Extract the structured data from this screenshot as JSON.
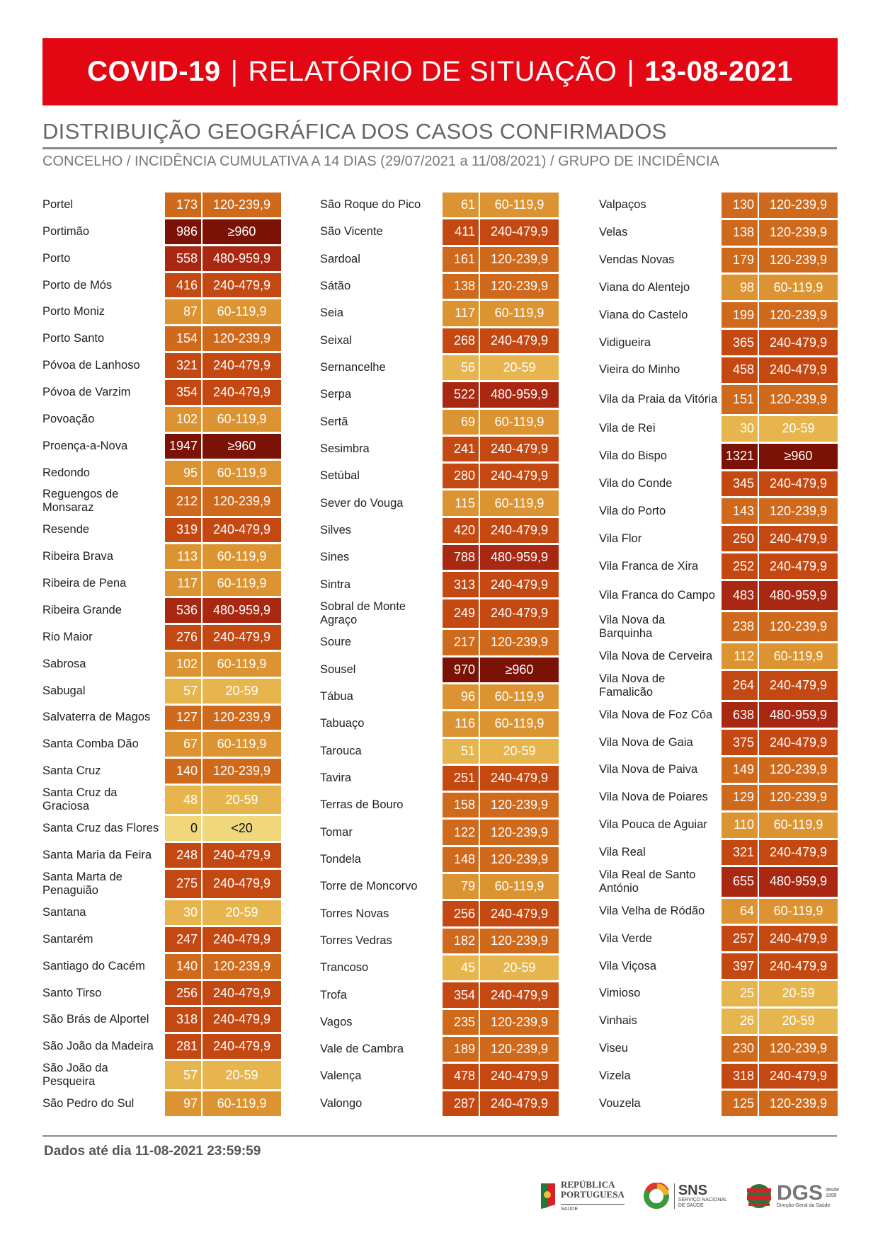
{
  "header": {
    "part1": "COVID-19",
    "separator": "|",
    "part2": "RELATÓRIO DE SITUAÇÃO",
    "date": "13-08-2021"
  },
  "title": "DISTRIBUIÇÃO GEOGRÁFICA DOS CASOS CONFIRMADOS",
  "subtitle": "CONCELHO / INCIDÊNCIA CUMULATIVA A 14 DIAS (29/07/2021 a 11/08/2021) / GRUPO DE INCIDÊNCIA",
  "colors": {
    "<20": "#f0d77c",
    "20-59": "#e7b54e",
    "60-119,9": "#dc9331",
    "120-239,9": "#cf6a1c",
    "240-479,9": "#c44811",
    "480-959,9": "#a82812",
    "≥960": "#7b1206",
    "banner": "#e30613"
  },
  "columns": [
    [
      [
        "Portel",
        "173",
        "120-239,9"
      ],
      [
        "Portimão",
        "986",
        "≥960"
      ],
      [
        "Porto",
        "558",
        "480-959,9"
      ],
      [
        "Porto de Mós",
        "416",
        "240-479,9"
      ],
      [
        "Porto Moniz",
        "87",
        "60-119,9"
      ],
      [
        "Porto Santo",
        "154",
        "120-239,9"
      ],
      [
        "Póvoa de Lanhoso",
        "321",
        "240-479,9"
      ],
      [
        "Póvoa de Varzim",
        "354",
        "240-479,9"
      ],
      [
        "Povoação",
        "102",
        "60-119,9"
      ],
      [
        "Proença-a-Nova",
        "1947",
        "≥960"
      ],
      [
        "Redondo",
        "95",
        "60-119,9"
      ],
      [
        "Reguengos de Monsaraz",
        "212",
        "120-239,9"
      ],
      [
        "Resende",
        "319",
        "240-479,9"
      ],
      [
        "Ribeira Brava",
        "113",
        "60-119,9"
      ],
      [
        "Ribeira de Pena",
        "117",
        "60-119,9"
      ],
      [
        "Ribeira Grande",
        "536",
        "480-959,9"
      ],
      [
        "Rio Maior",
        "276",
        "240-479,9"
      ],
      [
        "Sabrosa",
        "102",
        "60-119,9"
      ],
      [
        "Sabugal",
        "57",
        "20-59"
      ],
      [
        "Salvaterra de Magos",
        "127",
        "120-239,9"
      ],
      [
        "Santa Comba Dão",
        "67",
        "60-119,9"
      ],
      [
        "Santa Cruz",
        "140",
        "120-239,9"
      ],
      [
        "Santa Cruz da Graciosa",
        "48",
        "20-59"
      ],
      [
        "Santa Cruz das Flores",
        "0",
        "<20"
      ],
      [
        "Santa Maria da Feira",
        "248",
        "240-479,9"
      ],
      [
        "Santa Marta de Penaguião",
        "275",
        "240-479,9"
      ],
      [
        "Santana",
        "30",
        "20-59"
      ],
      [
        "Santarém",
        "247",
        "240-479,9"
      ],
      [
        "Santiago do Cacém",
        "140",
        "120-239,9"
      ],
      [
        "Santo Tirso",
        "256",
        "240-479,9"
      ],
      [
        "São Brás de Alportel",
        "318",
        "240-479,9"
      ],
      [
        "São João da Madeira",
        "281",
        "240-479,9"
      ],
      [
        "São João da Pesqueira",
        "57",
        "20-59"
      ],
      [
        "São Pedro do Sul",
        "97",
        "60-119,9"
      ]
    ],
    [
      [
        "São Roque do Pico",
        "61",
        "60-119,9"
      ],
      [
        "São Vicente",
        "411",
        "240-479,9"
      ],
      [
        "Sardoal",
        "161",
        "120-239,9"
      ],
      [
        "Sátão",
        "138",
        "120-239,9"
      ],
      [
        "Seia",
        "117",
        "60-119,9"
      ],
      [
        "Seixal",
        "268",
        "240-479,9"
      ],
      [
        "Sernancelhe",
        "56",
        "20-59"
      ],
      [
        "Serpa",
        "522",
        "480-959,9"
      ],
      [
        "Sertã",
        "69",
        "60-119,9"
      ],
      [
        "Sesimbra",
        "241",
        "240-479,9"
      ],
      [
        "Setúbal",
        "280",
        "240-479,9"
      ],
      [
        "Sever do Vouga",
        "115",
        "60-119,9"
      ],
      [
        "Silves",
        "420",
        "240-479,9"
      ],
      [
        "Sines",
        "788",
        "480-959,9"
      ],
      [
        "Sintra",
        "313",
        "240-479,9"
      ],
      [
        "Sobral de Monte Agraço",
        "249",
        "240-479,9"
      ],
      [
        "Soure",
        "217",
        "120-239,9"
      ],
      [
        "Sousel",
        "970",
        "≥960"
      ],
      [
        "Tábua",
        "96",
        "60-119,9"
      ],
      [
        "Tabuaço",
        "116",
        "60-119,9"
      ],
      [
        "Tarouca",
        "51",
        "20-59"
      ],
      [
        "Tavira",
        "251",
        "240-479,9"
      ],
      [
        "Terras de Bouro",
        "158",
        "120-239,9"
      ],
      [
        "Tomar",
        "122",
        "120-239,9"
      ],
      [
        "Tondela",
        "148",
        "120-239,9"
      ],
      [
        "Torre de Moncorvo",
        "79",
        "60-119,9"
      ],
      [
        "Torres Novas",
        "256",
        "240-479,9"
      ],
      [
        "Torres Vedras",
        "182",
        "120-239,9"
      ],
      [
        "Trancoso",
        "45",
        "20-59"
      ],
      [
        "Trofa",
        "354",
        "240-479,9"
      ],
      [
        "Vagos",
        "235",
        "120-239,9"
      ],
      [
        "Vale de Cambra",
        "189",
        "120-239,9"
      ],
      [
        "Valença",
        "478",
        "240-479,9"
      ],
      [
        "Valongo",
        "287",
        "240-479,9"
      ]
    ],
    [
      [
        "Valpaços",
        "130",
        "120-239,9"
      ],
      [
        "Velas",
        "138",
        "120-239,9"
      ],
      [
        "Vendas Novas",
        "179",
        "120-239,9"
      ],
      [
        "Viana do Alentejo",
        "98",
        "60-119,9"
      ],
      [
        "Viana do Castelo",
        "199",
        "120-239,9"
      ],
      [
        "Vidigueira",
        "365",
        "240-479,9"
      ],
      [
        "Vieira do Minho",
        "458",
        "240-479,9"
      ],
      [
        "Vila da Praia da Vitória",
        "151",
        "120-239,9"
      ],
      [
        "Vila de Rei",
        "30",
        "20-59"
      ],
      [
        "Vila do Bispo",
        "1321",
        "≥960"
      ],
      [
        "Vila do Conde",
        "345",
        "240-479,9"
      ],
      [
        "Vila do Porto",
        "143",
        "120-239,9"
      ],
      [
        "Vila Flor",
        "250",
        "240-479,9"
      ],
      [
        "Vila Franca de Xira",
        "252",
        "240-479,9"
      ],
      [
        "Vila Franca do Campo",
        "483",
        "480-959,9"
      ],
      [
        "Vila Nova da Barquinha",
        "238",
        "120-239,9"
      ],
      [
        "Vila Nova de Cerveira",
        "112",
        "60-119,9"
      ],
      [
        "Vila Nova de Famalicão",
        "264",
        "240-479,9"
      ],
      [
        "Vila Nova de Foz Côa",
        "638",
        "480-959,9"
      ],
      [
        "Vila Nova de Gaia",
        "375",
        "240-479,9"
      ],
      [
        "Vila Nova de Paiva",
        "149",
        "120-239,9"
      ],
      [
        "Vila Nova de Poiares",
        "129",
        "120-239,9"
      ],
      [
        "Vila Pouca de Aguiar",
        "110",
        "60-119,9"
      ],
      [
        "Vila Real",
        "321",
        "240-479,9"
      ],
      [
        "Vila Real de Santo António",
        "655",
        "480-959,9"
      ],
      [
        "Vila Velha de Ródão",
        "64",
        "60-119,9"
      ],
      [
        "Vila Verde",
        "257",
        "240-479,9"
      ],
      [
        "Vila Viçosa",
        "397",
        "240-479,9"
      ],
      [
        "Vimioso",
        "25",
        "20-59"
      ],
      [
        "Vinhais",
        "26",
        "20-59"
      ],
      [
        "Viseu",
        "230",
        "120-239,9"
      ],
      [
        "Vizela",
        "318",
        "240-479,9"
      ],
      [
        "Vouzela",
        "125",
        "120-239,9"
      ]
    ]
  ],
  "footer": {
    "data_note": "Dados até dia 11-08-2021 23:59:59"
  },
  "logos": {
    "republica": [
      "REPÚBLICA",
      "PORTUGUESA",
      "SAÚDE"
    ],
    "sns": [
      "SNS",
      "SERVIÇO NACIONAL",
      "DE SAÚDE"
    ],
    "dgs": [
      "DGS",
      "desde 1899",
      "Direção-Geral da Saúde"
    ]
  }
}
